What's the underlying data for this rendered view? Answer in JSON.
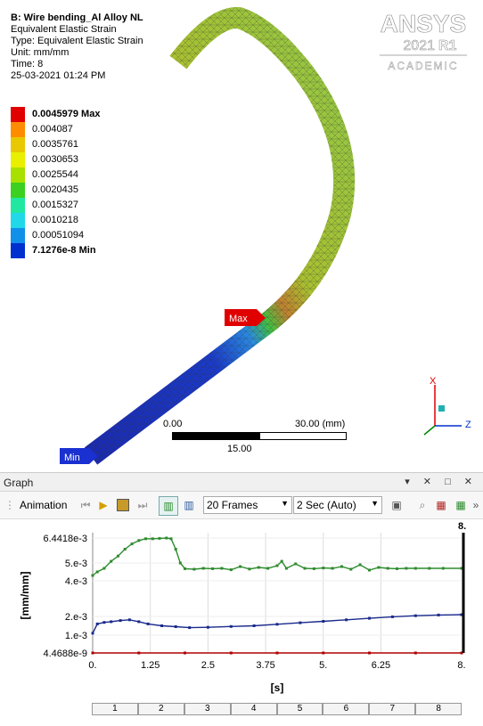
{
  "viewport": {
    "header": {
      "title": "B: Wire bending_Al Alloy NL",
      "result": "Equivalent Elastic Strain",
      "type": "Type: Equivalent Elastic Strain",
      "unit": "Unit: mm/mm",
      "time": "Time: 8",
      "date": "25-03-2021 01:24 PM"
    },
    "legend": [
      {
        "label": "0.0045979 Max",
        "color": "#e00000",
        "bold": true
      },
      {
        "label": "0.004087",
        "color": "#ff8c00",
        "bold": false
      },
      {
        "label": "0.0035761",
        "color": "#e8c800",
        "bold": false
      },
      {
        "label": "0.0030653",
        "color": "#e8f000",
        "bold": false
      },
      {
        "label": "0.0025544",
        "color": "#a8e000",
        "bold": false
      },
      {
        "label": "0.0020435",
        "color": "#3cd020",
        "bold": false
      },
      {
        "label": "0.0015327",
        "color": "#20e8a0",
        "bold": false
      },
      {
        "label": "0.0010218",
        "color": "#20d8e8",
        "bold": false
      },
      {
        "label": "0.00051094",
        "color": "#1090e8",
        "bold": false
      },
      {
        "label": "7.1276e-8 Min",
        "color": "#0030d0",
        "bold": true
      }
    ],
    "logo": {
      "brand": "ANSYS",
      "version": "2021",
      "release": "R1",
      "edition": "ACADEMIC"
    },
    "scale": {
      "left": "0.00",
      "right": "30.00 (mm)",
      "mid": "15.00"
    },
    "max_label": "Max",
    "min_label": "Min",
    "triad": {
      "x": "X",
      "z": "Z"
    }
  },
  "graph_panel": {
    "title": "Graph",
    "controls": "▾ ✕ □ ✕",
    "toolbar": {
      "animation_label": "Animation",
      "frames_value": "20 Frames",
      "duration_value": "2 Sec (Auto)"
    },
    "frames": [
      "1",
      "2",
      "3",
      "4",
      "5",
      "6",
      "7",
      "8"
    ]
  },
  "chart_data": {
    "type": "line",
    "title": "",
    "xlabel": "[s]",
    "ylabel": "[mm/mm]",
    "xlim": [
      0,
      8
    ],
    "ylim": [
      0,
      0.0064418
    ],
    "x_ticks": [
      "0.",
      "1.25",
      "2.5",
      "3.75",
      "5.",
      "6.25",
      "8."
    ],
    "x_tick_values": [
      0,
      1.25,
      2.5,
      3.75,
      5,
      6.25,
      8
    ],
    "y_ticks": [
      "4.4688e-9",
      "1.e-3",
      "2.e-3",
      "4.e-3",
      "5.e-3",
      "6.4418e-3"
    ],
    "y_tick_values": [
      4.4688e-09,
      0.001,
      0.002,
      0.004,
      0.005,
      0.0064418
    ],
    "current_time_label": "8.",
    "series": [
      {
        "color": "#2e8b2e",
        "x": [
          0,
          0.1,
          0.25,
          0.4,
          0.55,
          0.7,
          0.85,
          1.0,
          1.15,
          1.3,
          1.45,
          1.6,
          1.7,
          1.8,
          1.9,
          2.0,
          2.2,
          2.4,
          2.6,
          2.8,
          3.0,
          3.2,
          3.4,
          3.6,
          3.8,
          4.0,
          4.1,
          4.2,
          4.4,
          4.6,
          4.8,
          5.0,
          5.2,
          5.4,
          5.6,
          5.8,
          6.0,
          6.2,
          6.4,
          6.6,
          6.8,
          7.0,
          7.3,
          7.6,
          8.0
        ],
        "values": [
          0.0043,
          0.0045,
          0.0047,
          0.0051,
          0.0054,
          0.0058,
          0.0061,
          0.0063,
          0.0064,
          0.0064,
          0.00642,
          0.00644,
          0.0064,
          0.0058,
          0.005,
          0.00468,
          0.00465,
          0.0047,
          0.00468,
          0.0047,
          0.00462,
          0.0048,
          0.00466,
          0.00475,
          0.0047,
          0.00485,
          0.0051,
          0.0047,
          0.00495,
          0.0047,
          0.00468,
          0.00472,
          0.0047,
          0.0048,
          0.00465,
          0.0049,
          0.0046,
          0.00475,
          0.0047,
          0.00468,
          0.0047,
          0.0047,
          0.0047,
          0.0047,
          0.0047
        ]
      },
      {
        "color": "#1a2a8c",
        "x": [
          0,
          0.1,
          0.25,
          0.4,
          0.6,
          0.8,
          1.0,
          1.2,
          1.5,
          1.8,
          2.1,
          2.5,
          3.0,
          3.5,
          4.0,
          4.5,
          5.0,
          5.5,
          6.0,
          6.5,
          7.0,
          7.5,
          8.0
        ],
        "values": [
          0.0011,
          0.0016,
          0.00168,
          0.00172,
          0.00178,
          0.00182,
          0.00172,
          0.0016,
          0.0015,
          0.00145,
          0.0014,
          0.00142,
          0.00146,
          0.0015,
          0.00158,
          0.00166,
          0.00174,
          0.00182,
          0.0019,
          0.00198,
          0.00204,
          0.00208,
          0.0021
        ]
      },
      {
        "color": "#b00000",
        "x": [
          0,
          1,
          2,
          3,
          4,
          5,
          6,
          7,
          8
        ],
        "values": [
          4.4688e-09,
          4.4688e-09,
          4.4688e-09,
          4.4688e-09,
          4.4688e-09,
          4.4688e-09,
          4.4688e-09,
          4.4688e-09,
          4.4688e-09
        ]
      }
    ]
  }
}
